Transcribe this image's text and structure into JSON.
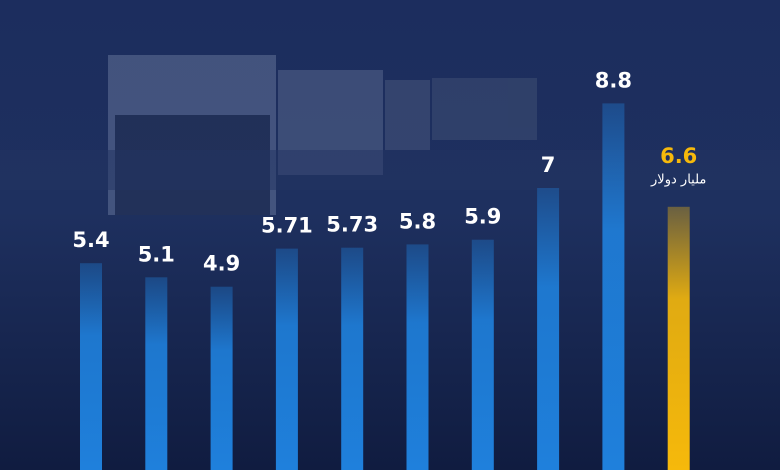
{
  "chart_data": {
    "type": "bar",
    "values": [
      5.4,
      5.1,
      4.9,
      5.71,
      5.73,
      5.8,
      5.9,
      7,
      8.8,
      6.6
    ],
    "colors": [
      "#1f80dc",
      "#1f80dc",
      "#1f80dc",
      "#1f80dc",
      "#1f80dc",
      "#1f80dc",
      "#1f80dc",
      "#1f80dc",
      "#1f80dc",
      "#f6b90b"
    ],
    "annotation": "مليار دولار",
    "ylim": [
      1,
      11
    ]
  }
}
